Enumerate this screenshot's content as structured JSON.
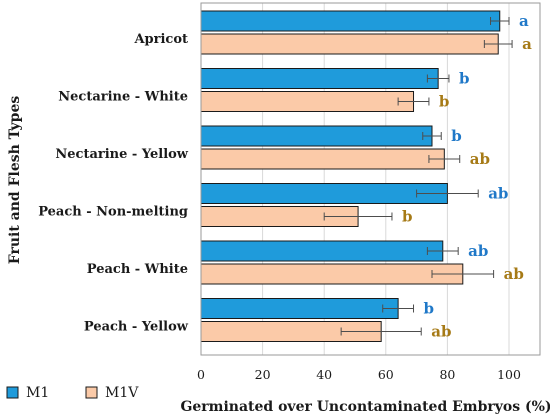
{
  "chart_data": {
    "type": "bar",
    "orientation": "horizontal",
    "xlabel": "Germinated over Uncontaminated Embryos (%)",
    "ylabel": "Fruit and Flesh Types",
    "xlim": [
      0,
      110
    ],
    "xticks": [
      0,
      20,
      40,
      60,
      80,
      100
    ],
    "grid": "vertical",
    "legend": "bottom-left",
    "categories": [
      "Apricot",
      "Nectarine - White",
      "Nectarine - Yellow",
      "Peach - Non-melting",
      "Peach - White",
      "Peach - Yellow"
    ],
    "series": [
      {
        "name": "M1",
        "color": "#1f9bdb",
        "label_color": "#1f78c8",
        "values": [
          97,
          77,
          75,
          80,
          78.5,
          64
        ],
        "errors": [
          3,
          3.5,
          3,
          10,
          5,
          5
        ],
        "letters": [
          "a",
          "b",
          "b",
          "ab",
          "ab",
          "b"
        ]
      },
      {
        "name": "M1V",
        "color": "#fbcaa8",
        "label_color": "#a67a16",
        "values": [
          96.5,
          69,
          79,
          51,
          85,
          58.5
        ],
        "errors": [
          4.5,
          5,
          5,
          11,
          10,
          13
        ],
        "letters": [
          "a",
          "b",
          "ab",
          "b",
          "ab",
          "ab"
        ]
      }
    ]
  }
}
